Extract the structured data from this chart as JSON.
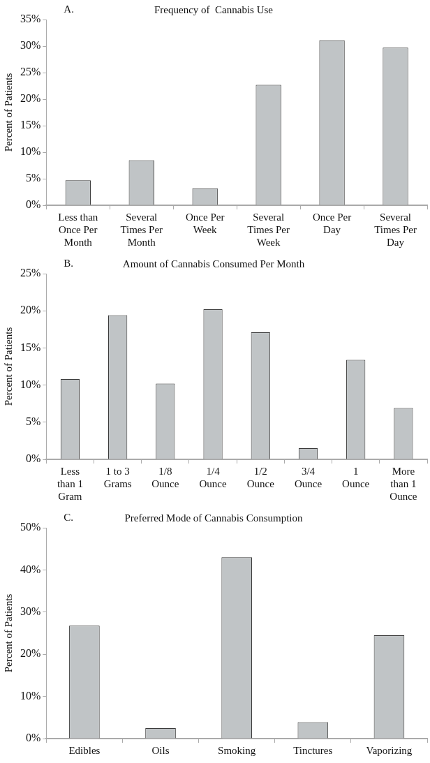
{
  "chart_data": [
    {
      "type": "bar",
      "title": "Frequency of  Cannabis Use",
      "annotations": [
        "A."
      ],
      "ylabel": "Percent of Patients",
      "categories": [
        "Less than Once Per Month",
        "Several Times Per Month",
        "Once Per Week",
        "Several Times Per Week",
        "Once Per Day",
        "Several Times Per Day"
      ],
      "values": [
        4.7,
        8.5,
        3.2,
        22.7,
        31.1,
        29.7
      ],
      "color": "#c0c4c6",
      "ylim": [
        0,
        35
      ],
      "yticks": [
        {
          "value": 0,
          "label": "0%"
        },
        {
          "value": 5,
          "label": "5%"
        },
        {
          "value": 10,
          "label": "10%"
        },
        {
          "value": 15,
          "label": "15%"
        },
        {
          "value": 20,
          "label": "20%"
        },
        {
          "value": 25,
          "label": "25%"
        },
        {
          "value": 30,
          "label": "30%"
        },
        {
          "value": 35,
          "label": "35%"
        }
      ],
      "grid": false,
      "legend": false
    },
    {
      "type": "bar",
      "title": "Amount of Cannabis Consumed Per Month",
      "annotations": [
        "B."
      ],
      "ylabel": "Percent of Patients",
      "categories": [
        "Less than 1 Gram",
        "1 to 3 Grams",
        "1/8 Ounce",
        "1/4 Ounce",
        "1/2 Ounce",
        "3/4 Ounce",
        "1 Ounce",
        "More than 1 Ounce"
      ],
      "values": [
        10.8,
        19.4,
        10.2,
        20.2,
        17.1,
        1.5,
        13.4,
        6.9
      ],
      "color": "#c0c4c6",
      "ylim": [
        0,
        25
      ],
      "yticks": [
        {
          "value": 0,
          "label": "0%"
        },
        {
          "value": 5,
          "label": "5%"
        },
        {
          "value": 10,
          "label": "10%"
        },
        {
          "value": 15,
          "label": "15%"
        },
        {
          "value": 20,
          "label": "20%"
        },
        {
          "value": 25,
          "label": "25%"
        }
      ],
      "grid": false,
      "legend": false
    },
    {
      "type": "bar",
      "title": "Preferred Mode of Cannabis Consumption",
      "annotations": [
        "C."
      ],
      "ylabel": "Percent of Patients",
      "categories": [
        "Edibles",
        "Oils",
        "Smoking",
        "Tinctures",
        "Vaporizing"
      ],
      "values": [
        26.8,
        2.5,
        43.0,
        3.9,
        24.5
      ],
      "color": "#c0c4c6",
      "ylim": [
        0,
        50
      ],
      "yticks": [
        {
          "value": 0,
          "label": "0%"
        },
        {
          "value": 10,
          "label": "10%"
        },
        {
          "value": 20,
          "label": "20%"
        },
        {
          "value": 30,
          "label": "30%"
        },
        {
          "value": 40,
          "label": "40%"
        },
        {
          "value": 50,
          "label": "50%"
        }
      ],
      "grid": false,
      "legend": false
    }
  ]
}
